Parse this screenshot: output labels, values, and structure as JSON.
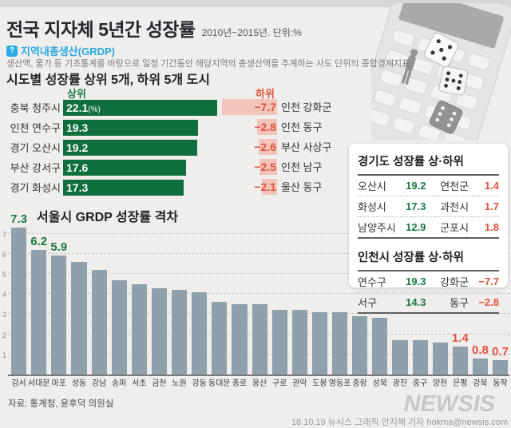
{
  "header": {
    "title": "전국 지자체 5년간 성장률",
    "subtitle": "2010년~2015년. 단위:%",
    "grdp_badge": "?",
    "grdp_label": "지역내총생산(GRDP)",
    "grdp_desc": "생산액, 물가 등 기초통계를 바탕으로 일정 기간동안 해당지역의 총생산액을 추계하는 사도 단위의 종합경제지표",
    "section_title": "시도별 성장률 상위 5개, 하위 5개 도시"
  },
  "chart_data": [
    {
      "type": "bar",
      "orientation": "horizontal",
      "title": "시도별 성장률 상위 5개, 하위 5개 도시",
      "unit": "%",
      "top_label": "상위",
      "bottom_label": "하위",
      "top": [
        {
          "name": "충북 청주시",
          "value": 22.1,
          "display": "22.1",
          "suffix": "(%)"
        },
        {
          "name": "인천 연수구",
          "value": 19.3,
          "display": "19.3",
          "suffix": ""
        },
        {
          "name": "경기 오산시",
          "value": 19.2,
          "display": "19.2",
          "suffix": ""
        },
        {
          "name": "부산 강서구",
          "value": 17.6,
          "display": "17.6",
          "suffix": ""
        },
        {
          "name": "경기 화성시",
          "value": 17.3,
          "display": "17.3",
          "suffix": ""
        }
      ],
      "bottom": [
        {
          "name": "인천 강화군",
          "value": -7.7,
          "display": "−7.7"
        },
        {
          "name": "인천 동구",
          "value": -2.8,
          "display": "−2.8"
        },
        {
          "name": "부산 사상구",
          "value": -2.6,
          "display": "−2.6"
        },
        {
          "name": "인천 남구",
          "value": -2.5,
          "display": "−2.5"
        },
        {
          "name": "울산 동구",
          "value": -2.1,
          "display": "−2.1"
        }
      ]
    },
    {
      "type": "table",
      "tables": [
        {
          "title": "경기도 성장률 상·하위",
          "rows": [
            {
              "top_name": "오산시",
              "top_value": "19.2",
              "bottom_name": "연천군",
              "bottom_value": "1.4"
            },
            {
              "top_name": "화성시",
              "top_value": "17.3",
              "bottom_name": "과천시",
              "bottom_value": "1.7"
            },
            {
              "top_name": "남양주시",
              "top_value": "12.9",
              "bottom_name": "군포시",
              "bottom_value": "1.8"
            }
          ]
        },
        {
          "title": "인천시 성장률 상·하위",
          "rows": [
            {
              "top_name": "연수구",
              "top_value": "19.3",
              "bottom_name": "강화군",
              "bottom_value": "−7.7"
            },
            {
              "top_name": "서구",
              "top_value": "14.3",
              "bottom_name": "동구",
              "bottom_value": "−2.8"
            }
          ]
        }
      ]
    },
    {
      "type": "bar",
      "title": "서울시 GRDP 성장률 격차",
      "categories": [
        "강서",
        "서대문",
        "마포",
        "성동",
        "강남",
        "송파",
        "서초",
        "금천",
        "노원",
        "강동",
        "동대문",
        "종로",
        "용산",
        "구로",
        "관악",
        "도봉",
        "영등포",
        "중랑",
        "성북",
        "광진",
        "중구",
        "양천",
        "은평",
        "강북",
        "동작"
      ],
      "values": [
        7.3,
        6.2,
        5.9,
        5.6,
        5.2,
        4.7,
        4.5,
        4.3,
        4.2,
        4.1,
        3.6,
        3.5,
        3.5,
        3.2,
        3.2,
        3.1,
        3.1,
        2.9,
        2.8,
        1.7,
        1.7,
        1.6,
        1.4,
        0.8,
        0.7
      ],
      "value_labels": {
        "0": "7.3",
        "1": "6.2",
        "2": "5.9",
        "22": "1.4",
        "23": "0.8",
        "24": "0.7"
      },
      "value_label_colors": {
        "0": "green",
        "1": "green",
        "2": "green",
        "22": "red",
        "23": "red",
        "24": "red"
      },
      "ylim": [
        0,
        7.5
      ],
      "yticks": [
        1,
        2,
        3,
        4,
        5,
        6,
        7
      ],
      "grid": true,
      "legend": "none"
    }
  ],
  "footer": {
    "source": "자료: 통계청, 윤후덕 의원실",
    "logo": "NEWSIS",
    "credit": "18.10.19 뉴시스 그래픽 안지혜 기자 hokma@newsis.com"
  },
  "colors": {
    "positive_green_bar": "#0e6e3c",
    "green_text": "#1a7a3e",
    "negative_red_text": "#e2503c",
    "negative_pink_bar": "#f2c5ba",
    "seoul_gray_bar": "#8da0ab",
    "accent_blue": "#2aa9e2",
    "background": "#efeeec"
  }
}
